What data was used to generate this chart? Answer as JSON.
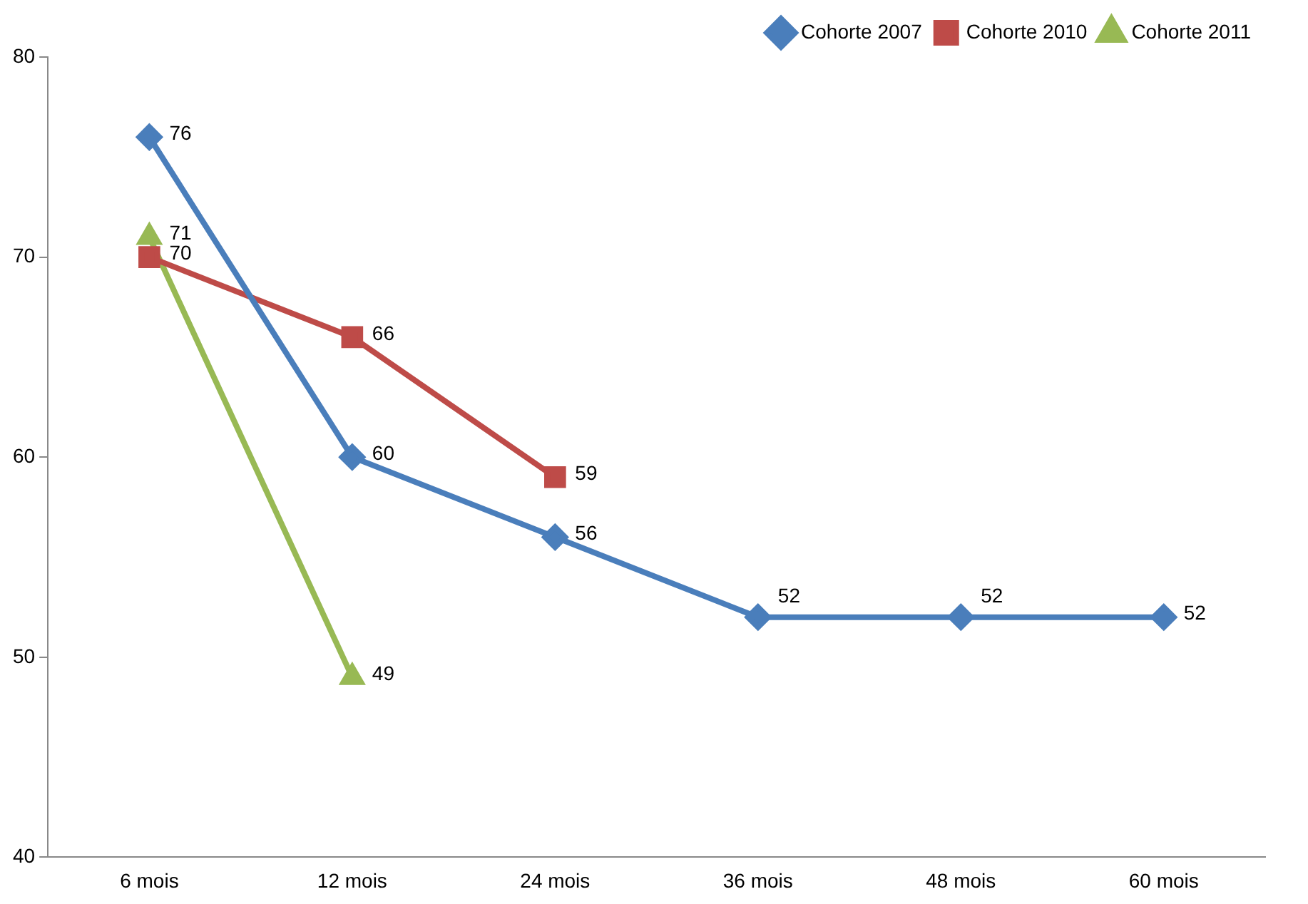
{
  "chart_data": {
    "type": "line",
    "categories": [
      "6 mois",
      "12 mois",
      "24 mois",
      "36 mois",
      "48 mois",
      "60 mois"
    ],
    "series": [
      {
        "name": "Cohorte 2007",
        "color": "#4a7ebb",
        "marker": "diamond",
        "values": [
          76,
          60,
          56,
          52,
          52,
          52
        ]
      },
      {
        "name": "Cohorte 2010",
        "color": "#be4b48",
        "marker": "square",
        "values": [
          70,
          66,
          59,
          null,
          null,
          null
        ]
      },
      {
        "name": "Cohorte 2011",
        "color": "#98b954",
        "marker": "triangle",
        "values": [
          71,
          49,
          null,
          null,
          null,
          null
        ]
      }
    ],
    "ylim": [
      40,
      80
    ],
    "yticks": [
      40,
      50,
      60,
      70,
      80
    ],
    "grid": false,
    "legend": "top right",
    "data_labels": true
  }
}
